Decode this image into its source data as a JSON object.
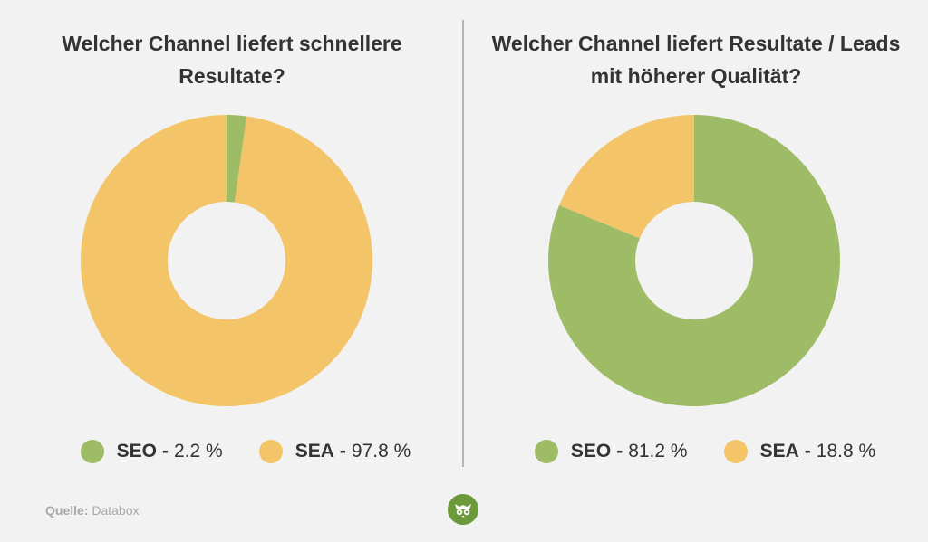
{
  "chart_data": [
    {
      "type": "pie",
      "title": "Welcher Channel liefert schnellere Resultate?",
      "categories": [
        "SEO",
        "SEA"
      ],
      "values": [
        2.2,
        97.8
      ],
      "colors": [
        "#9ebb65",
        "#f3c468"
      ],
      "legend": [
        {
          "name": "SEO",
          "value": "2.2 %"
        },
        {
          "name": "SEA",
          "value": "97.8 %"
        }
      ],
      "legend_position": "bottom"
    },
    {
      "type": "pie",
      "title": "Welcher Channel liefert Resultate / Leads mit höherer Qualität?",
      "categories": [
        "SEO",
        "SEA"
      ],
      "values": [
        81.2,
        18.8
      ],
      "colors": [
        "#9ebb65",
        "#f3c468"
      ],
      "legend": [
        {
          "name": "SEO",
          "value": "81.2 %"
        },
        {
          "name": "SEA",
          "value": "18.8 %"
        }
      ],
      "legend_position": "bottom"
    }
  ],
  "source": {
    "label": "Quelle:",
    "value": "Databox"
  },
  "logo": {
    "icon": "owl-icon",
    "color": "#6c9a3a"
  }
}
